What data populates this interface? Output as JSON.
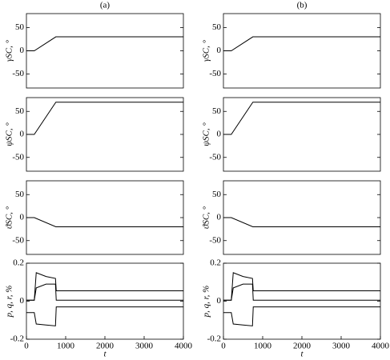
{
  "chart_data": [
    {
      "type": "line",
      "title": "(a)",
      "ylabel": "γSC, °",
      "x": [
        0,
        200,
        750,
        4000
      ],
      "series": [
        {
          "name": "γSC",
          "color": "#000000",
          "values": [
            0,
            0,
            30,
            30
          ]
        }
      ],
      "xlim": [
        0,
        4000
      ],
      "ylim": [
        -80,
        80
      ],
      "yticks": [
        50,
        0,
        -50
      ]
    },
    {
      "type": "line",
      "title": "(b)",
      "ylabel": "γSC, °",
      "x": [
        0,
        200,
        750,
        4000
      ],
      "series": [
        {
          "name": "γSC",
          "color": "#000000",
          "values": [
            0,
            0,
            30,
            30
          ]
        }
      ],
      "xlim": [
        0,
        4000
      ],
      "ylim": [
        -80,
        80
      ],
      "yticks": [
        50,
        0,
        -50
      ]
    },
    {
      "type": "line",
      "ylabel": "ψSC, °",
      "x": [
        0,
        200,
        750,
        4000
      ],
      "series": [
        {
          "name": "ψSC",
          "color": "#000000",
          "values": [
            0,
            0,
            70,
            70
          ]
        }
      ],
      "xlim": [
        0,
        4000
      ],
      "ylim": [
        -80,
        80
      ],
      "yticks": [
        50,
        0,
        -50
      ]
    },
    {
      "type": "line",
      "ylabel": "ψSC, °",
      "x": [
        0,
        200,
        750,
        4000
      ],
      "series": [
        {
          "name": "ψSC",
          "color": "#000000",
          "values": [
            0,
            0,
            70,
            70
          ]
        }
      ],
      "xlim": [
        0,
        4000
      ],
      "ylim": [
        -80,
        80
      ],
      "yticks": [
        50,
        0,
        -50
      ]
    },
    {
      "type": "line",
      "ylabel": "ϑSC, °",
      "x": [
        0,
        200,
        750,
        4000
      ],
      "series": [
        {
          "name": "ϑSC",
          "color": "#000000",
          "values": [
            0,
            0,
            -20,
            -20
          ]
        }
      ],
      "xlim": [
        0,
        4000
      ],
      "ylim": [
        -80,
        80
      ],
      "yticks": [
        50,
        0,
        -50
      ]
    },
    {
      "type": "line",
      "ylabel": "ϑSC, °",
      "x": [
        0,
        200,
        750,
        4000
      ],
      "series": [
        {
          "name": "ϑSC",
          "color": "#000000",
          "values": [
            0,
            0,
            -20,
            -20
          ]
        }
      ],
      "xlim": [
        0,
        4000
      ],
      "ylim": [
        -80,
        80
      ],
      "yticks": [
        50,
        0,
        -50
      ]
    },
    {
      "type": "line",
      "ylabel": "p, q, r, %",
      "xlabel": "t",
      "x": [
        0,
        200,
        250,
        500,
        740,
        760,
        4000
      ],
      "series": [
        {
          "name": "p",
          "color": "#000000",
          "values": [
            0.005,
            0.005,
            0.15,
            0.13,
            0.12,
            0.055,
            0.055
          ]
        },
        {
          "name": "q",
          "color": "#000000",
          "values": [
            0.005,
            0.005,
            0.07,
            0.09,
            0.09,
            0.005,
            0.005
          ]
        },
        {
          "name": "r",
          "color": "#000000",
          "values": [
            -0.06,
            -0.06,
            -0.12,
            -0.125,
            -0.13,
            -0.03,
            -0.03
          ]
        }
      ],
      "xlim": [
        0,
        4000
      ],
      "ylim": [
        -0.2,
        0.2
      ],
      "yticks": [
        0.2,
        0,
        -0.2
      ],
      "xticks": [
        0,
        1000,
        2000,
        3000,
        4000
      ]
    },
    {
      "type": "line",
      "ylabel": "p, q, r, %",
      "xlabel": "t",
      "x": [
        0,
        200,
        250,
        500,
        740,
        760,
        4000
      ],
      "series": [
        {
          "name": "p",
          "color": "#000000",
          "values": [
            0.005,
            0.005,
            0.15,
            0.13,
            0.12,
            0.055,
            0.055
          ]
        },
        {
          "name": "q",
          "color": "#000000",
          "values": [
            0.005,
            0.005,
            0.07,
            0.09,
            0.09,
            0.005,
            0.005
          ]
        },
        {
          "name": "r",
          "color": "#000000",
          "values": [
            -0.06,
            -0.06,
            -0.12,
            -0.125,
            -0.13,
            -0.03,
            -0.03
          ]
        }
      ],
      "xlim": [
        0,
        4000
      ],
      "ylim": [
        -0.2,
        0.2
      ],
      "yticks": [
        0.2,
        0,
        -0.2
      ],
      "xticks": [
        0,
        1000,
        2000,
        3000,
        4000
      ]
    }
  ]
}
